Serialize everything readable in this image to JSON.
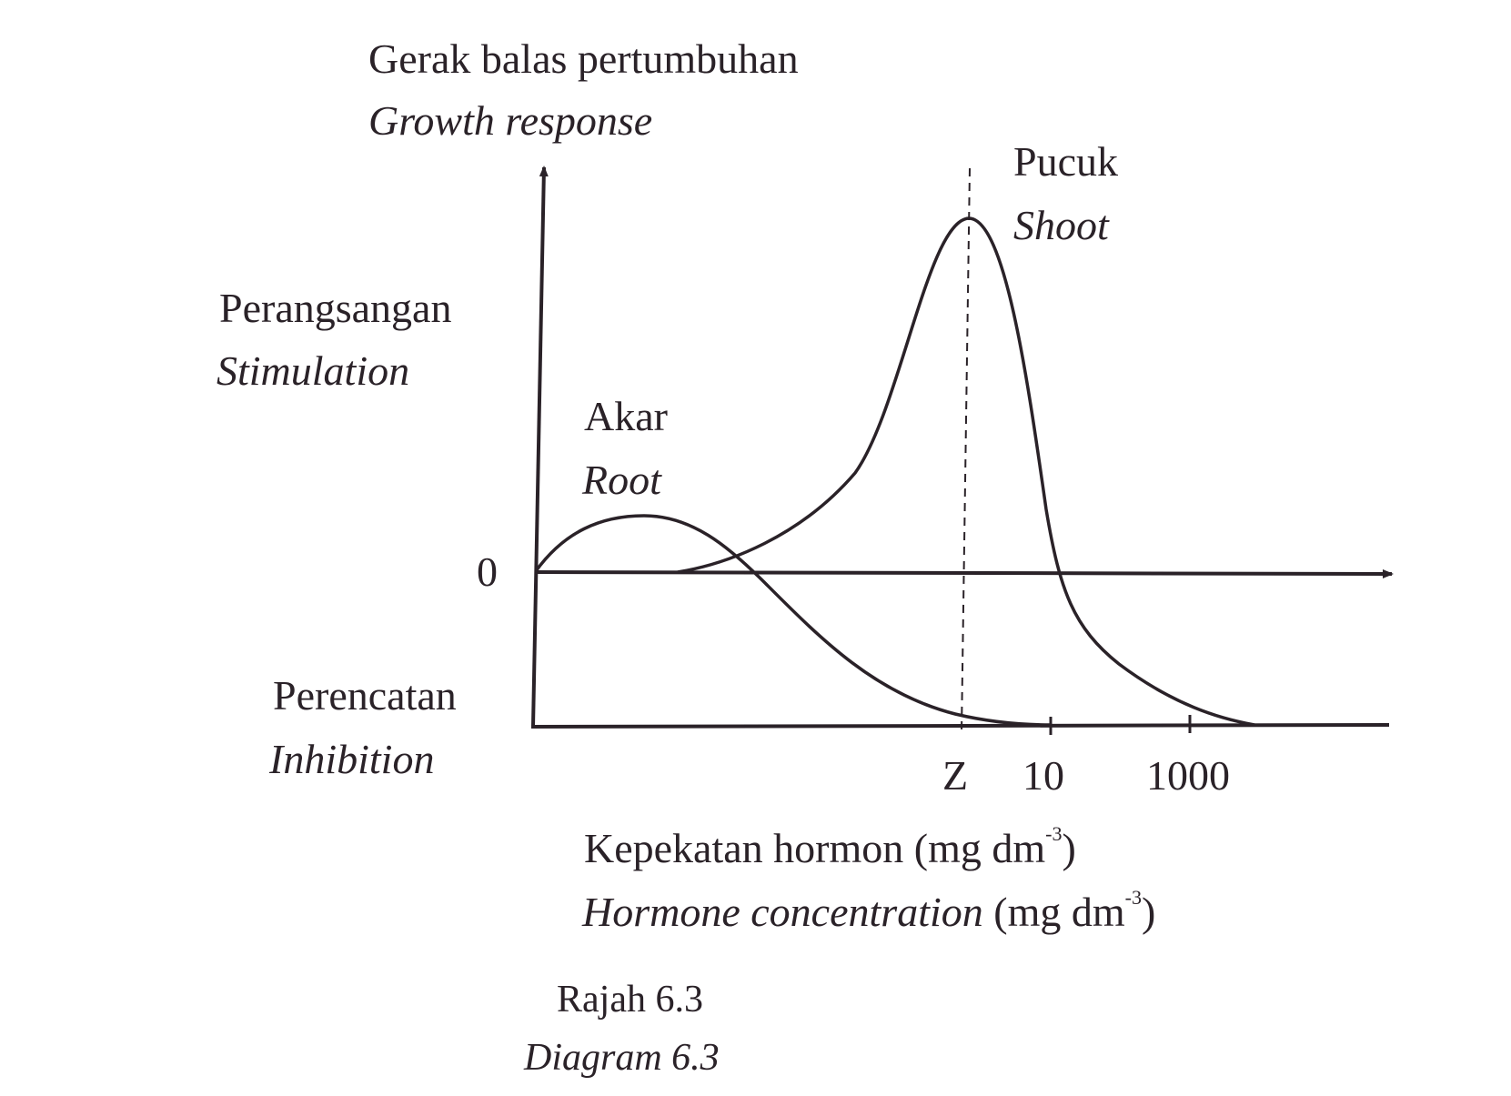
{
  "chart_data": {
    "type": "line",
    "title": "",
    "ylabel": {
      "ms": "Gerak balas pertumbuhan",
      "en": "Growth response"
    },
    "y_regions": {
      "upper": {
        "ms": "Perangsangan",
        "en": "Stimulation"
      },
      "zero": "0",
      "lower": {
        "ms": "Perencatan",
        "en": "Inhibition"
      }
    },
    "xlabel": {
      "ms": "Kepekatan hormon",
      "en": "Hormone concentration",
      "unit": "(mg dm",
      "unit_exp": "-3",
      "unit_close": ")"
    },
    "x_ticks": [
      "Z",
      "10",
      "1000"
    ],
    "series": [
      {
        "name": {
          "ms": "Akar",
          "en": "Root"
        },
        "peak_at": "before Z",
        "becomes_inhibitory": "below Z"
      },
      {
        "name": {
          "ms": "Pucuk",
          "en": "Shoot"
        },
        "peak_at": "Z",
        "becomes_inhibitory": "above 10"
      }
    ],
    "reference_line": "Z",
    "colors": {
      "ink": "#2a2228"
    }
  },
  "caption": {
    "ms": "Rajah 6.3",
    "en": "Diagram 6.3"
  }
}
